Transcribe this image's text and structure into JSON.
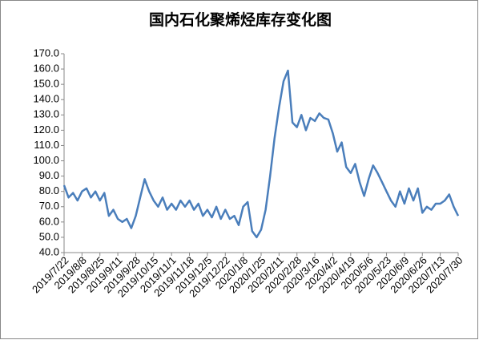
{
  "chart_data": {
    "type": "line",
    "title": "国内石化聚烯烃库存变化图",
    "categories": [
      "2019/7/22",
      null,
      null,
      null,
      "2019/8/8",
      null,
      null,
      null,
      "2019/8/25",
      null,
      null,
      null,
      "2019/9/11",
      null,
      null,
      null,
      "2019/9/28",
      null,
      null,
      null,
      "2019/10/15",
      null,
      null,
      null,
      "2019/11/1",
      null,
      null,
      null,
      "2019/11/18",
      null,
      null,
      null,
      "2019/12/5",
      null,
      null,
      null,
      "2019/12/22",
      null,
      null,
      null,
      "2020/1/8",
      null,
      null,
      null,
      "2020/1/25",
      null,
      null,
      null,
      "2020/2/11",
      null,
      null,
      null,
      "2020/2/28",
      null,
      null,
      null,
      "2020/3/16",
      null,
      null,
      null,
      "2020/4/2",
      null,
      null,
      null,
      "2020/4/19",
      null,
      null,
      null,
      "2020/5/6",
      null,
      null,
      null,
      "2020/5/23",
      null,
      null,
      null,
      "2020/6/9",
      null,
      null,
      null,
      "2020/6/26",
      null,
      null,
      null,
      "2020/7/13",
      null,
      null,
      null,
      "2020/7/30"
    ],
    "series": [
      {
        "color": "#4a7ebb",
        "values": [
          84,
          76,
          79,
          74,
          80,
          82,
          76,
          80,
          74,
          79,
          64,
          68,
          62,
          60,
          62,
          56,
          64,
          76,
          88,
          80,
          74,
          70,
          76,
          68,
          72,
          68,
          74,
          70,
          74,
          68,
          72,
          64,
          68,
          63,
          70,
          62,
          68,
          62,
          64,
          58,
          70,
          73,
          54,
          50,
          55,
          68,
          90,
          115,
          135,
          152,
          159,
          125,
          122,
          130,
          120,
          128,
          126,
          131,
          128,
          127,
          118,
          106,
          112,
          96,
          92,
          98,
          86,
          77,
          88,
          97,
          92,
          86,
          80,
          74,
          70,
          80,
          72,
          82,
          74,
          82,
          66,
          70,
          68,
          72,
          72,
          74,
          78,
          70,
          64
        ]
      }
    ],
    "ylim": [
      40,
      170
    ],
    "yticks": [
      {
        "value": 40,
        "label": "40.0"
      },
      {
        "value": 50,
        "label": "50.0"
      },
      {
        "value": 60,
        "label": "60.0"
      },
      {
        "value": 70,
        "label": "70.0"
      },
      {
        "value": 80,
        "label": "80.0"
      },
      {
        "value": 90,
        "label": "90.0"
      },
      {
        "value": 100,
        "label": "100.0"
      },
      {
        "value": 110,
        "label": "110.0"
      },
      {
        "value": 120,
        "label": "120.0"
      },
      {
        "value": 130,
        "label": "130.0"
      },
      {
        "value": 140,
        "label": "140.0"
      },
      {
        "value": 150,
        "label": "150.0"
      },
      {
        "value": 160,
        "label": "160.0"
      },
      {
        "value": 170,
        "label": "170.0"
      }
    ],
    "grid": false
  }
}
